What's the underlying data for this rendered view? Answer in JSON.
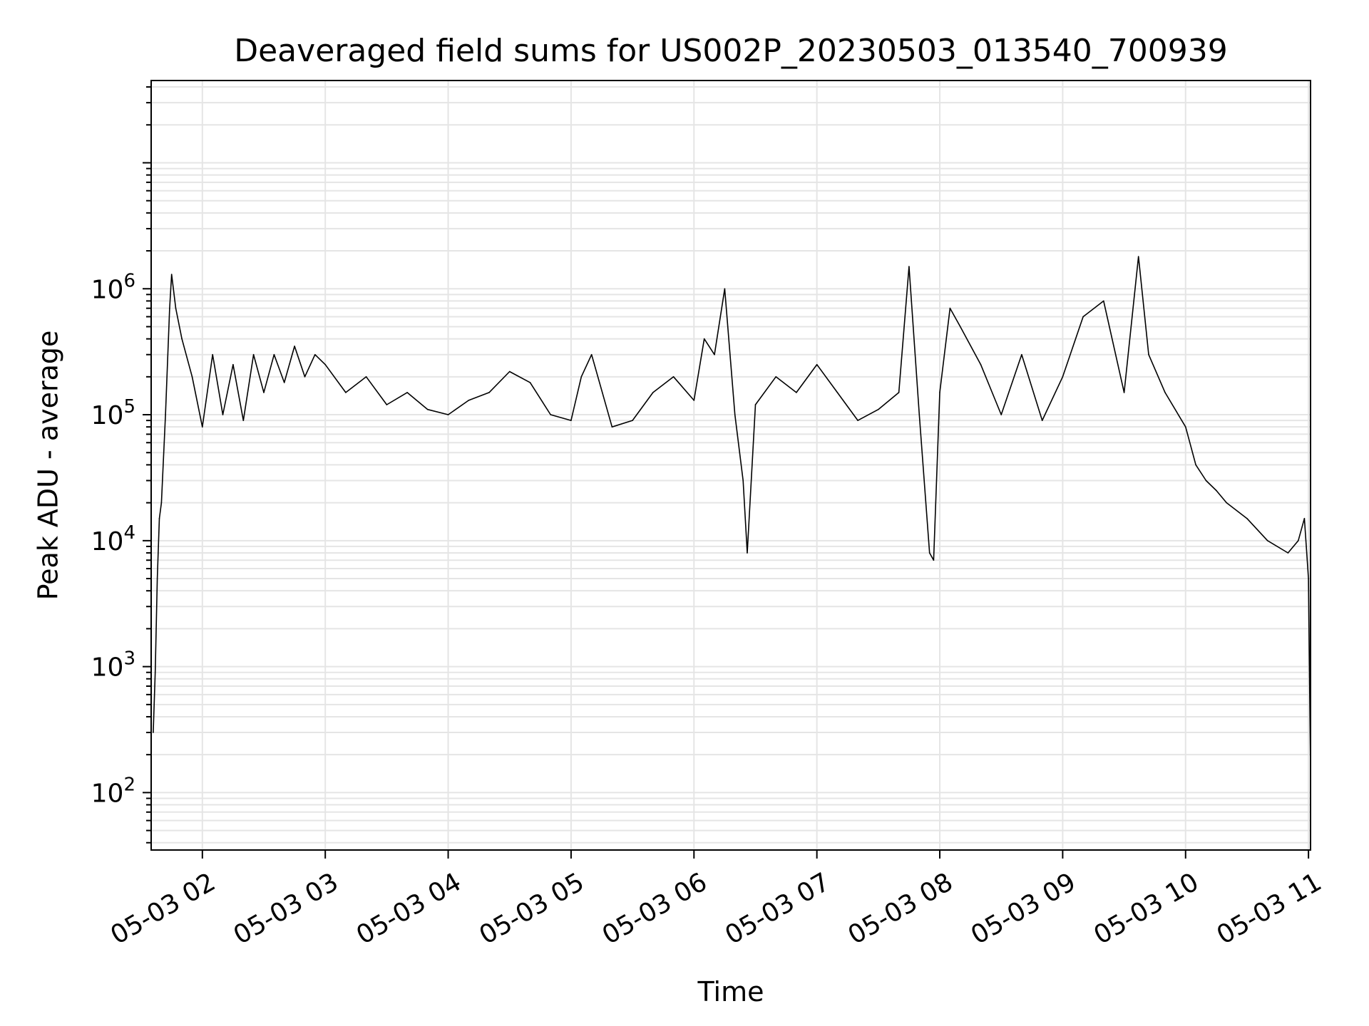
{
  "chart_data": {
    "type": "line",
    "title": "Deaveraged field sums for US002P_20230503_013540_700939",
    "xlabel": "Time",
    "ylabel": "Peak ADU - average",
    "y_scale": "log",
    "ylim": [
      35,
      45000000
    ],
    "xlim": [
      "2023-05-03 01:35",
      "2023-05-03 11:01"
    ],
    "grid": true,
    "line_color": "#000000",
    "grid_color": "#e5e5e5",
    "x_ticks": [
      {
        "t": "2023-05-03 02:00",
        "label": "05-03 02"
      },
      {
        "t": "2023-05-03 03:00",
        "label": "05-03 03"
      },
      {
        "t": "2023-05-03 04:00",
        "label": "05-03 04"
      },
      {
        "t": "2023-05-03 05:00",
        "label": "05-03 05"
      },
      {
        "t": "2023-05-03 06:00",
        "label": "05-03 06"
      },
      {
        "t": "2023-05-03 07:00",
        "label": "05-03 07"
      },
      {
        "t": "2023-05-03 08:00",
        "label": "05-03 08"
      },
      {
        "t": "2023-05-03 09:00",
        "label": "05-03 09"
      },
      {
        "t": "2023-05-03 10:00",
        "label": "05-03 10"
      },
      {
        "t": "2023-05-03 11:00",
        "label": "05-03 11"
      }
    ],
    "y_ticks": [
      {
        "value": 100,
        "base": "10",
        "exp": "2"
      },
      {
        "value": 1000,
        "base": "10",
        "exp": "3"
      },
      {
        "value": 10000,
        "base": "10",
        "exp": "4"
      },
      {
        "value": 100000,
        "base": "10",
        "exp": "5"
      },
      {
        "value": 1000000,
        "base": "10",
        "exp": "6"
      }
    ],
    "series": [
      {
        "points": [
          [
            "2023-05-03 01:36",
            300
          ],
          [
            "2023-05-03 01:37",
            900
          ],
          [
            "2023-05-03 01:38",
            5000
          ],
          [
            "2023-05-03 01:39",
            15000
          ],
          [
            "2023-05-03 01:40",
            20000
          ],
          [
            "2023-05-03 01:42",
            100000
          ],
          [
            "2023-05-03 01:44",
            700000
          ],
          [
            "2023-05-03 01:45",
            1300000
          ],
          [
            "2023-05-03 01:47",
            700000
          ],
          [
            "2023-05-03 01:50",
            400000
          ],
          [
            "2023-05-03 01:55",
            200000
          ],
          [
            "2023-05-03 02:00",
            80000
          ],
          [
            "2023-05-03 02:05",
            300000
          ],
          [
            "2023-05-03 02:10",
            100000
          ],
          [
            "2023-05-03 02:15",
            250000
          ],
          [
            "2023-05-03 02:20",
            90000
          ],
          [
            "2023-05-03 02:25",
            300000
          ],
          [
            "2023-05-03 02:30",
            150000
          ],
          [
            "2023-05-03 02:35",
            300000
          ],
          [
            "2023-05-03 02:40",
            180000
          ],
          [
            "2023-05-03 02:45",
            350000
          ],
          [
            "2023-05-03 02:50",
            200000
          ],
          [
            "2023-05-03 02:55",
            300000
          ],
          [
            "2023-05-03 03:00",
            250000
          ],
          [
            "2023-05-03 03:10",
            150000
          ],
          [
            "2023-05-03 03:20",
            200000
          ],
          [
            "2023-05-03 03:30",
            120000
          ],
          [
            "2023-05-03 03:40",
            150000
          ],
          [
            "2023-05-03 03:50",
            110000
          ],
          [
            "2023-05-03 04:00",
            100000
          ],
          [
            "2023-05-03 04:10",
            130000
          ],
          [
            "2023-05-03 04:20",
            150000
          ],
          [
            "2023-05-03 04:30",
            220000
          ],
          [
            "2023-05-03 04:40",
            180000
          ],
          [
            "2023-05-03 04:50",
            100000
          ],
          [
            "2023-05-03 05:00",
            90000
          ],
          [
            "2023-05-03 05:05",
            200000
          ],
          [
            "2023-05-03 05:10",
            300000
          ],
          [
            "2023-05-03 05:20",
            80000
          ],
          [
            "2023-05-03 05:30",
            90000
          ],
          [
            "2023-05-03 05:40",
            150000
          ],
          [
            "2023-05-03 05:50",
            200000
          ],
          [
            "2023-05-03 06:00",
            130000
          ],
          [
            "2023-05-03 06:05",
            400000
          ],
          [
            "2023-05-03 06:10",
            300000
          ],
          [
            "2023-05-03 06:15",
            1000000
          ],
          [
            "2023-05-03 06:20",
            100000
          ],
          [
            "2023-05-03 06:24",
            30000
          ],
          [
            "2023-05-03 06:26",
            8000
          ],
          [
            "2023-05-03 06:30",
            120000
          ],
          [
            "2023-05-03 06:40",
            200000
          ],
          [
            "2023-05-03 06:50",
            150000
          ],
          [
            "2023-05-03 07:00",
            250000
          ],
          [
            "2023-05-03 07:10",
            150000
          ],
          [
            "2023-05-03 07:20",
            90000
          ],
          [
            "2023-05-03 07:30",
            110000
          ],
          [
            "2023-05-03 07:40",
            150000
          ],
          [
            "2023-05-03 07:45",
            1500000
          ],
          [
            "2023-05-03 07:50",
            100000
          ],
          [
            "2023-05-03 07:55",
            8000
          ],
          [
            "2023-05-03 07:57",
            7000
          ],
          [
            "2023-05-03 08:00",
            150000
          ],
          [
            "2023-05-03 08:05",
            700000
          ],
          [
            "2023-05-03 08:10",
            500000
          ],
          [
            "2023-05-03 08:20",
            250000
          ],
          [
            "2023-05-03 08:30",
            100000
          ],
          [
            "2023-05-03 08:40",
            300000
          ],
          [
            "2023-05-03 08:50",
            90000
          ],
          [
            "2023-05-03 09:00",
            200000
          ],
          [
            "2023-05-03 09:10",
            600000
          ],
          [
            "2023-05-03 09:20",
            800000
          ],
          [
            "2023-05-03 09:30",
            150000
          ],
          [
            "2023-05-03 09:37",
            1800000
          ],
          [
            "2023-05-03 09:42",
            300000
          ],
          [
            "2023-05-03 09:50",
            150000
          ],
          [
            "2023-05-03 10:00",
            80000
          ],
          [
            "2023-05-03 10:05",
            40000
          ],
          [
            "2023-05-03 10:10",
            30000
          ],
          [
            "2023-05-03 10:15",
            25000
          ],
          [
            "2023-05-03 10:20",
            20000
          ],
          [
            "2023-05-03 10:30",
            15000
          ],
          [
            "2023-05-03 10:40",
            10000
          ],
          [
            "2023-05-03 10:50",
            8000
          ],
          [
            "2023-05-03 10:55",
            10000
          ],
          [
            "2023-05-03 10:58",
            15000
          ],
          [
            "2023-05-03 11:00",
            5000
          ],
          [
            "2023-05-03 11:01",
            150
          ]
        ]
      }
    ]
  }
}
